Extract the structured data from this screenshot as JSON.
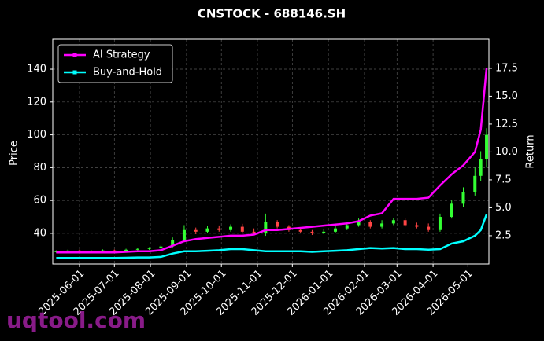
{
  "chart_data": {
    "type": "candlestick_line",
    "title": "CNSTOCK - 688146.SH",
    "y_label": "Price",
    "y2_label": "Return",
    "watermark": "uqtool.com",
    "x": [
      "2025-05-12",
      "2025-05-22",
      "2025-06-01",
      "2025-06-11",
      "2025-06-21",
      "2025-07-01",
      "2025-07-11",
      "2025-07-21",
      "2025-07-31",
      "2025-08-10",
      "2025-08-20",
      "2025-08-30",
      "2025-09-09",
      "2025-09-19",
      "2025-09-29",
      "2025-10-09",
      "2025-10-19",
      "2025-10-29",
      "2025-11-08",
      "2025-11-18",
      "2025-11-28",
      "2025-12-08",
      "2025-12-18",
      "2025-12-28",
      "2026-01-07",
      "2026-01-17",
      "2026-01-27",
      "2026-02-06",
      "2026-02-16",
      "2026-02-26",
      "2026-03-08",
      "2026-03-18",
      "2026-03-28",
      "2026-04-07",
      "2026-04-17",
      "2026-04-27",
      "2026-05-07",
      "2026-05-12",
      "2026-05-17"
    ],
    "open": [
      28.8,
      29,
      29.5,
      29,
      29.3,
      29.6,
      29.4,
      30,
      30.5,
      31,
      32,
      36,
      42,
      41,
      43,
      42,
      44,
      41,
      40,
      47,
      44,
      42,
      41,
      40,
      41,
      43,
      45,
      47,
      44,
      46,
      48,
      45,
      44,
      42,
      50,
      58,
      65,
      75,
      85
    ],
    "high": [
      29.6,
      30.1,
      30.1,
      29.9,
      30.2,
      30.2,
      30.6,
      31.1,
      31.6,
      32.8,
      37.5,
      45,
      43.5,
      44.5,
      44.8,
      45.5,
      45.8,
      43,
      52,
      48,
      45,
      43.5,
      42,
      42.5,
      44.5,
      46.5,
      49,
      48,
      48,
      49.5,
      49.5,
      46.5,
      46,
      52,
      60,
      68,
      80,
      90,
      104
    ],
    "low": [
      28.2,
      28.5,
      28.5,
      28.6,
      28.8,
      28.9,
      28.9,
      29.4,
      29.9,
      30.4,
      31.2,
      35,
      39.5,
      40,
      41,
      41,
      40,
      39,
      38.5,
      43,
      41,
      40,
      39,
      39.5,
      40.2,
      42,
      44,
      43,
      43,
      45,
      44,
      43,
      41,
      41,
      49,
      56,
      63,
      72,
      80
    ],
    "close": [
      29,
      29.5,
      29,
      29.3,
      29.6,
      29.4,
      30,
      30.5,
      31,
      32,
      36,
      42,
      41,
      43,
      42,
      44,
      41,
      40,
      47,
      44,
      42,
      41,
      40,
      41,
      43,
      45,
      47,
      44,
      46,
      48,
      45,
      44,
      42,
      50,
      58,
      65,
      75,
      85,
      100
    ],
    "up_color": "#33ff33",
    "down_color": "#ff4444",
    "series": [
      {
        "name": "AI Strategy",
        "color": "#ff00ff",
        "axis": "y2",
        "values": [
          1,
          1,
          1,
          1,
          1,
          1,
          1.05,
          1.1,
          1.1,
          1.2,
          1.6,
          2.0,
          2.2,
          2.3,
          2.4,
          2.5,
          2.5,
          2.6,
          3.0,
          3.0,
          3.1,
          3.2,
          3.3,
          3.4,
          3.5,
          3.6,
          3.8,
          4.3,
          4.5,
          5.8,
          5.8,
          5.8,
          5.9,
          7.0,
          8.0,
          8.8,
          10.0,
          12.0,
          17.5
        ]
      },
      {
        "name": "Buy-and-Hold",
        "color": "#00ffff",
        "axis": "y2",
        "values": [
          0.5,
          0.5,
          0.5,
          0.5,
          0.5,
          0.5,
          0.52,
          0.55,
          0.55,
          0.6,
          0.9,
          1.1,
          1.1,
          1.15,
          1.2,
          1.3,
          1.3,
          1.2,
          1.1,
          1.1,
          1.1,
          1.1,
          1.05,
          1.1,
          1.15,
          1.2,
          1.3,
          1.4,
          1.35,
          1.4,
          1.3,
          1.3,
          1.25,
          1.3,
          1.8,
          2.0,
          2.5,
          3.0,
          4.4
        ]
      }
    ],
    "xlim": [
      "2025-05-09",
      "2026-05-19"
    ],
    "xticks": [
      "2025-06-01",
      "2025-07-01",
      "2025-08-01",
      "2025-09-01",
      "2025-10-01",
      "2025-11-01",
      "2025-12-01",
      "2026-01-01",
      "2026-02-01",
      "2026-03-01",
      "2026-04-01",
      "2026-05-01"
    ],
    "ylim": [
      21.3,
      158.2
    ],
    "yticks": [
      40,
      60,
      80,
      100,
      120,
      140
    ],
    "y2lim": [
      -0.04,
      20.1
    ],
    "y2ticks": [
      2.5,
      {
        "value": 5,
        "label": "5.0"
      },
      7.5,
      {
        "value": 10,
        "label": "10.0"
      },
      12.5,
      {
        "value": 15,
        "label": "15.0"
      },
      17.5
    ],
    "grid": true,
    "legend": "upper left"
  }
}
